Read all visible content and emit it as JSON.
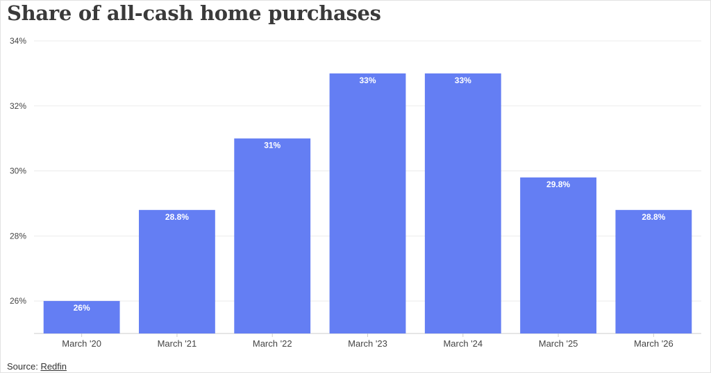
{
  "title": "Share of all-cash home purchases",
  "source": {
    "label": "Source:",
    "link_text": "Redfin"
  },
  "colors": {
    "bar": "#647ef3",
    "grid": "#ebebeb",
    "axis": "#cccccc",
    "tick_text": "#444444",
    "label_text": "#ffffff"
  },
  "chart_data": {
    "type": "bar",
    "title": "Share of all-cash home purchases",
    "categories": [
      "March '20",
      "March '21",
      "March '22",
      "March '23",
      "March '24",
      "March '25",
      "March '26"
    ],
    "values": [
      26,
      28.8,
      31,
      33,
      33,
      29.8,
      28.8
    ],
    "data_labels": [
      "26%",
      "28.8%",
      "31%",
      "33%",
      "33%",
      "29.8%",
      "28.8%"
    ],
    "ylim": [
      25,
      34
    ],
    "yticks": [
      26,
      28,
      30,
      32,
      34
    ],
    "ytick_labels": [
      "26%",
      "28%",
      "30%",
      "32%",
      "34%"
    ],
    "xlabel": "",
    "ylabel": "",
    "grid": true,
    "legend": "none"
  }
}
